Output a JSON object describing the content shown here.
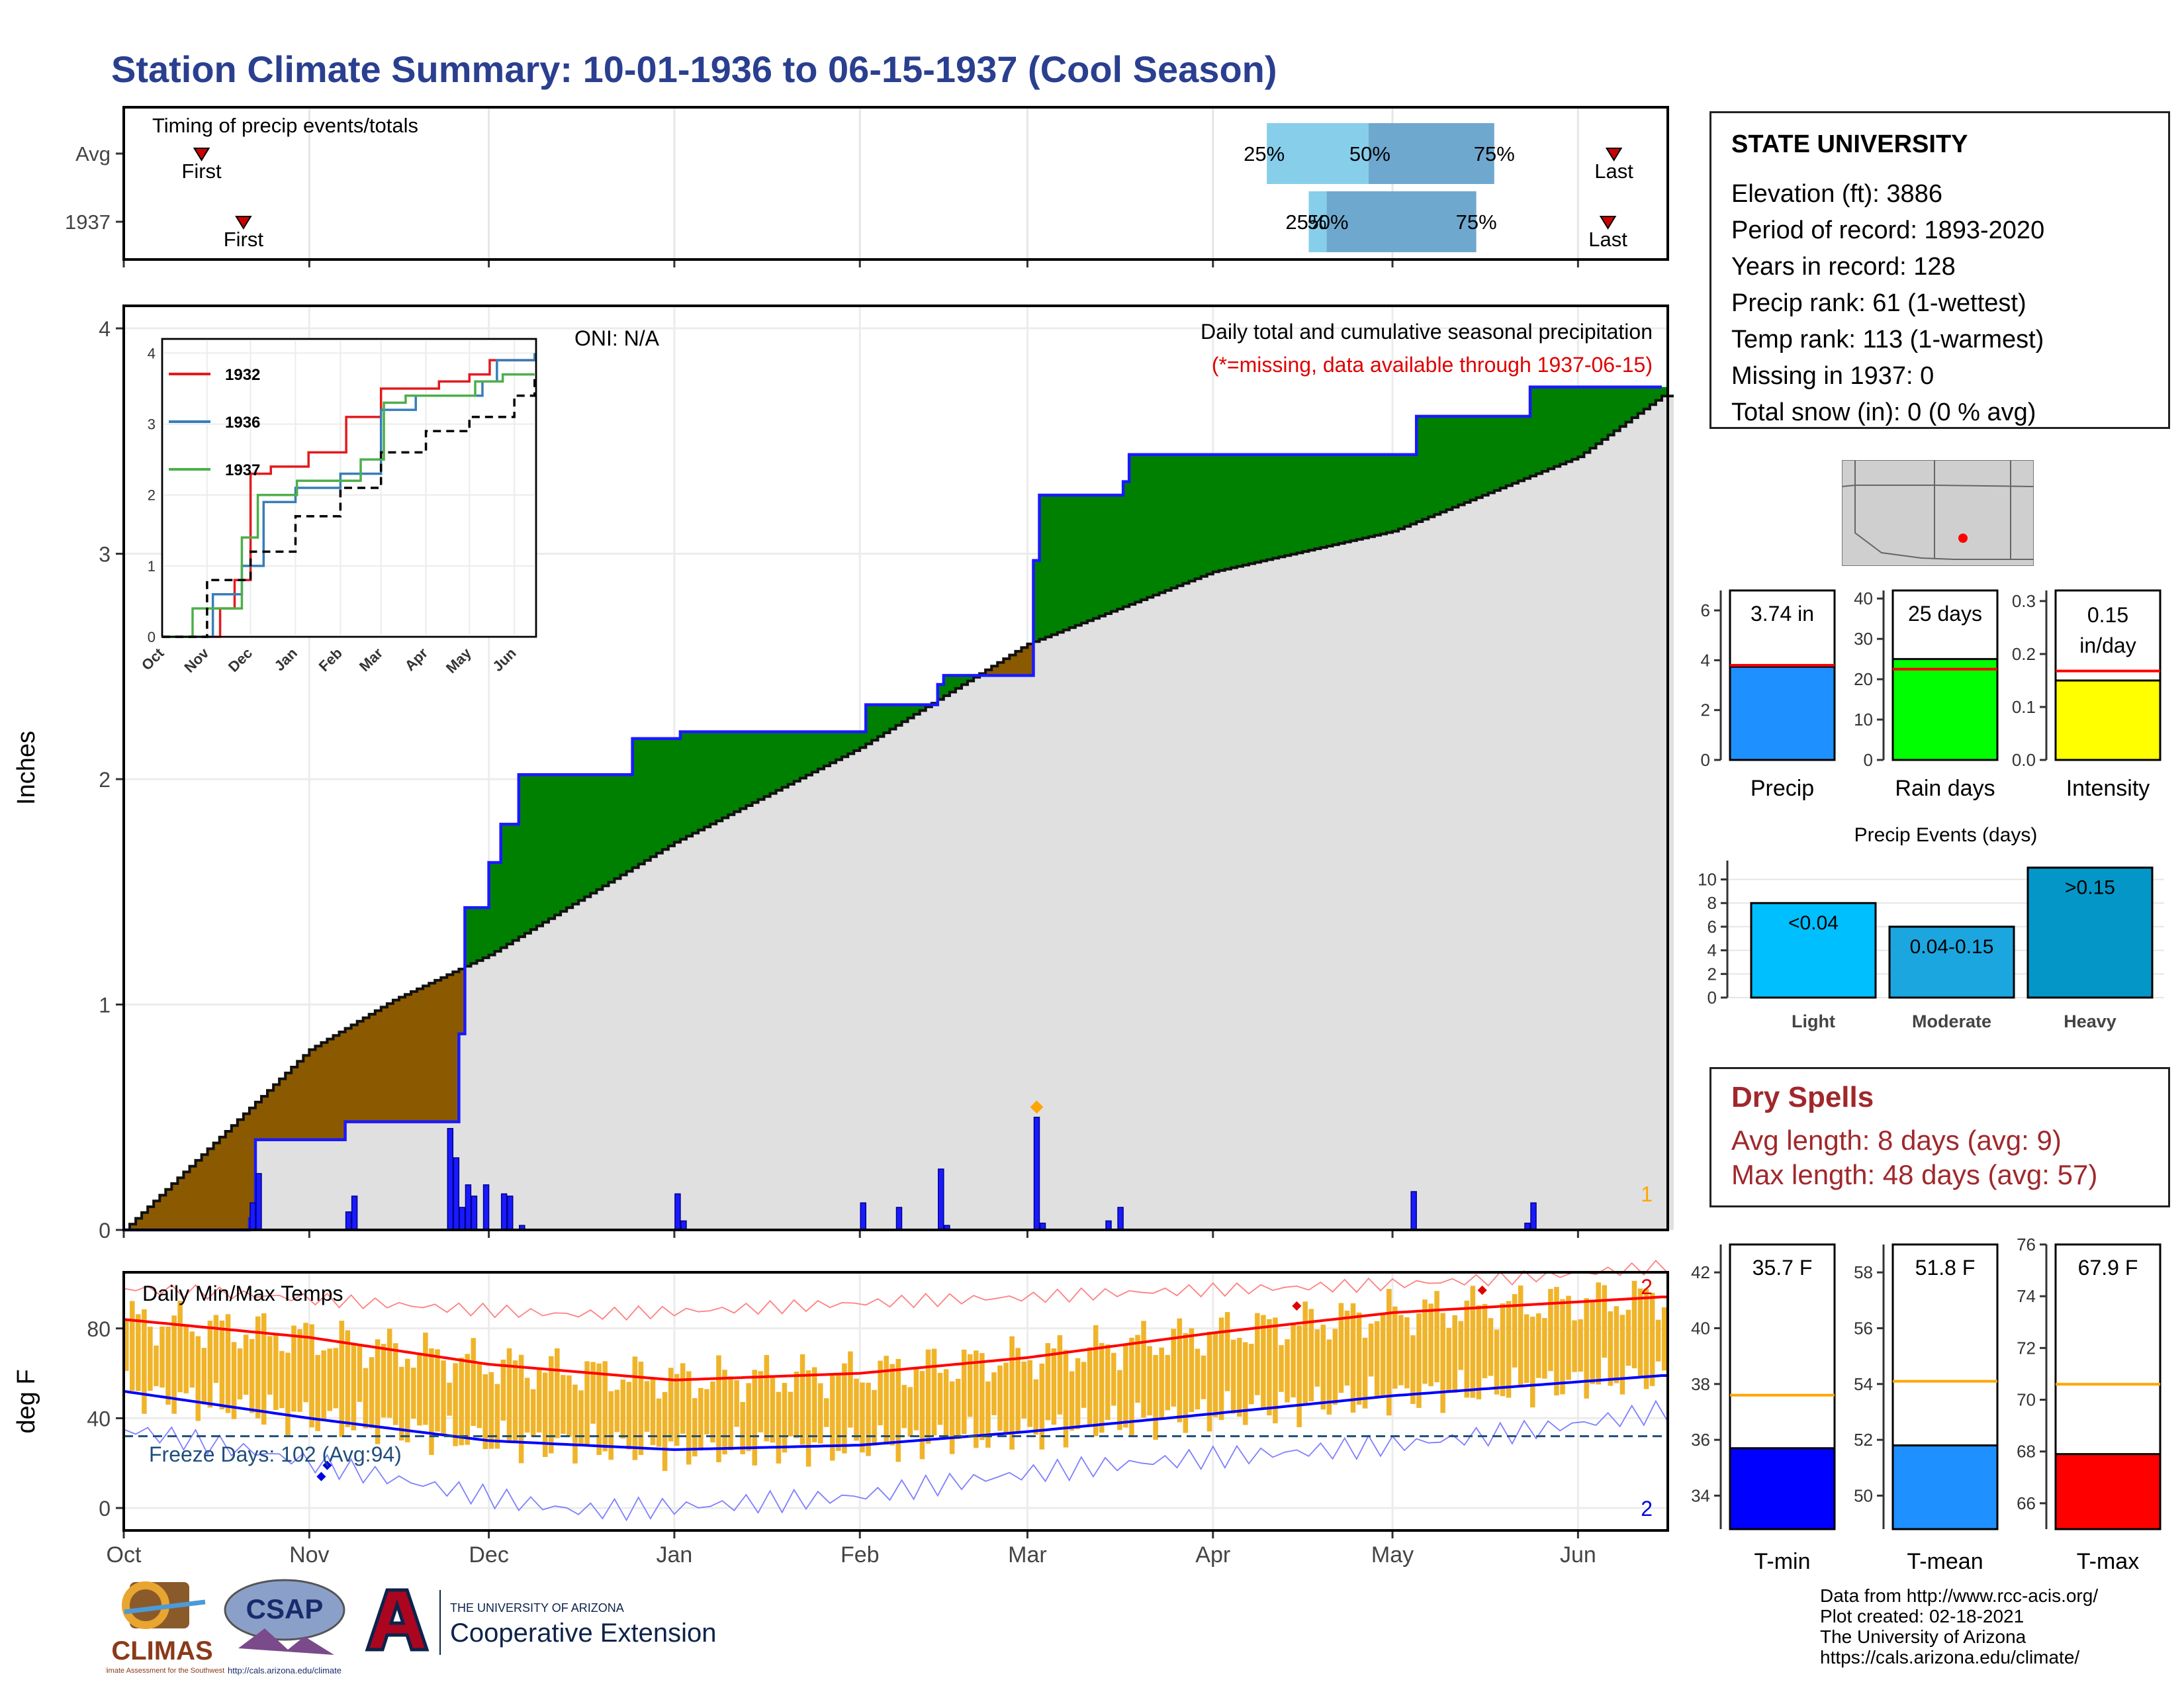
{
  "header": {
    "title": "Station Climate Summary: 10-01-1936 to 06-15-1937 (Cool Season)"
  },
  "timing": {
    "title": "Timing of precip events/totals",
    "rows": [
      {
        "label": "Avg",
        "first": "Oct 14",
        "last": "Jun 7",
        "p25": "Apr 10",
        "p50": "Apr 27",
        "p75": "May 18",
        "first_label": "First",
        "last_label": "Last",
        "p25_label": "25%",
        "p50_label": "50%",
        "p75_label": "75%"
      },
      {
        "label": "1937",
        "first": "Oct 21",
        "last": "Jun 6",
        "p25": "Apr 17",
        "p50": "Apr 20",
        "p75": "May 15",
        "first_label": "First",
        "last_label": "Last",
        "p25_label": "25%",
        "p50_label": "50%",
        "p75_label": "75%"
      }
    ],
    "colors": {
      "early": "#87ceeb",
      "late": "#6fa8cf",
      "marker": "#cc0000"
    }
  },
  "main": {
    "ylabel": "Inches",
    "oni": "ONI: N/A",
    "desc": "Daily total and cumulative seasonal precipitation",
    "missing_note": "(*=missing, data available through 1937-06-15)",
    "corner_count": "1",
    "y_ticks": [
      "0",
      "1",
      "2",
      "3",
      "4"
    ],
    "x_ticks": [
      "Oct",
      "Nov",
      "Dec",
      "Jan",
      "Feb",
      "Mar",
      "Apr",
      "May",
      "Jun"
    ]
  },
  "inset": {
    "legend": [
      "1932",
      "1936",
      "1937"
    ],
    "legend_colors": [
      "#e31a1c",
      "#377eb8",
      "#4daf4a"
    ],
    "y_ticks": [
      "0",
      "1",
      "2",
      "3",
      "4"
    ],
    "x_ticks": [
      "Oct",
      "Nov",
      "Dec",
      "Jan",
      "Feb",
      "Mar",
      "Apr",
      "May",
      "Jun"
    ]
  },
  "temps": {
    "title": "Daily Min/Max Temps",
    "ylabel": "deg F",
    "freeze": "Freeze Days: 102 (Avg:94)",
    "max_count": "2",
    "min_count": "2",
    "y_ticks": [
      "0",
      "40",
      "80"
    ],
    "x_ticks": [
      "Oct",
      "Nov",
      "Dec",
      "Jan",
      "Feb",
      "Mar",
      "Apr",
      "May",
      "Jun"
    ]
  },
  "station": {
    "name": "STATE UNIVERSITY",
    "lines": [
      "Elevation (ft): 3886",
      "Period of record: 1893-2020",
      "Years in record: 128",
      "Precip rank: 61 (1-wettest)",
      "Temp rank: 113 (1-warmest)",
      "Missing in 1937: 0",
      "Total snow (in): 0 (0 % avg)"
    ]
  },
  "summary_bars": [
    {
      "name": "Precip",
      "value_label": "3.74 in",
      "value": 3.74,
      "avg": 3.8,
      "color": "#1e90ff",
      "ticks": [
        "0",
        "2",
        "4",
        "6"
      ],
      "ymax": 6.8
    },
    {
      "name": "Rain days",
      "value_label": "25 days",
      "value": 25,
      "avg": 22.5,
      "color": "#00ff00",
      "ticks": [
        "0",
        "10",
        "20",
        "30",
        "40"
      ],
      "ymax": 42
    },
    {
      "name": "Intensity",
      "value_label": "0.15 in/day",
      "value_label_1": "0.15",
      "value_label_2": "in/day",
      "value": 0.15,
      "avg": 0.168,
      "color": "#ffff00",
      "ticks": [
        "0.0",
        "0.1",
        "0.2",
        "0.3"
      ],
      "ymax": 0.32
    }
  ],
  "precip_events": {
    "title": "Precip Events (days)",
    "ticks": [
      "0",
      "2",
      "4",
      "6",
      "8",
      "10"
    ],
    "bars": [
      {
        "name": "Light",
        "label": "<0.04",
        "value": 8,
        "color": "#00bfff"
      },
      {
        "name": "Moderate",
        "label": "0.04-0.15",
        "value": 6,
        "color": "#1ca6e0"
      },
      {
        "name": "Heavy",
        "label": ">0.15",
        "value": 11,
        "color": "#0596c8"
      }
    ]
  },
  "dry_spells": {
    "title": "Dry Spells",
    "avg_length": "Avg length: 8 days (avg: 9)",
    "max_length": "Max length: 48 days (avg: 57)"
  },
  "temp_bars": [
    {
      "name": "T-min",
      "value_label": "35.7 F",
      "value": 35.7,
      "avg": 37.6,
      "color": "#0000ff",
      "ticks": [
        "34",
        "36",
        "38",
        "40",
        "42"
      ],
      "ymin": 32.8,
      "ymax": 43
    },
    {
      "name": "T-mean",
      "value_label": "51.8 F",
      "value": 51.8,
      "avg": 54.1,
      "color": "#1e90ff",
      "ticks": [
        "50",
        "52",
        "54",
        "56",
        "58"
      ],
      "ymin": 48.8,
      "ymax": 59
    },
    {
      "name": "T-max",
      "value_label": "67.9 F",
      "value": 67.9,
      "avg": 70.6,
      "color": "#ff0000",
      "ticks": [
        "66",
        "68",
        "70",
        "72",
        "74",
        "76"
      ],
      "ymin": 65,
      "ymax": 76
    }
  ],
  "credits": [
    "Data from http://www.rcc-acis.org/",
    "Plot created: 02-18-2021",
    "The University of Arizona",
    "https://cals.arizona.edu/climate/"
  ],
  "logos": {
    "climas": "CLIMAS",
    "climas_sub": "Climate Assessment for the Southwest",
    "csap": "CSAP",
    "csap_url": "http://cals.arizona.edu/climate",
    "ua_line1": "THE UNIVERSITY OF ARIZONA",
    "ua_line2": "Cooperative Extension"
  },
  "chart_data": [
    {
      "type": "area",
      "title": "Daily total and cumulative seasonal precipitation",
      "ylabel": "Inches",
      "ylim": [
        0,
        4.1
      ],
      "x_unit": "date (1936-10-01 to 1937-06-15)",
      "series": [
        {
          "name": "1937",
          "x": [
            "1936-10-01",
            "1936-10-22",
            "1936-10-23",
            "1936-11-01",
            "1936-11-04",
            "1936-11-07",
            "1936-11-09",
            "1936-11-25",
            "1936-11-26",
            "1936-11-27",
            "1936-12-01",
            "1936-12-03",
            "1936-12-05",
            "1936-12-06",
            "1936-12-24",
            "1936-12-25",
            "1937-01-01",
            "1937-01-02",
            "1937-01-03",
            "1937-02-01",
            "1937-02-02",
            "1937-02-07",
            "1937-02-14",
            "1937-02-15",
            "1937-02-18",
            "1937-03-02",
            "1937-03-03",
            "1937-03-16",
            "1937-03-17",
            "1937-03-18",
            "1937-05-04",
            "1937-05-05",
            "1937-05-23",
            "1937-05-24",
            "1937-06-15"
          ],
          "y": [
            0,
            0.05,
            0.4,
            0.4,
            0.4,
            0.48,
            0.48,
            0.48,
            0.87,
            1.43,
            1.63,
            1.8,
            1.8,
            2.02,
            2.02,
            2.18,
            2.18,
            2.21,
            2.21,
            2.21,
            2.33,
            2.33,
            2.42,
            2.46,
            2.46,
            2.97,
            3.26,
            3.26,
            3.32,
            3.44,
            3.44,
            3.61,
            3.61,
            3.74,
            3.74
          ]
        },
        {
          "name": "Avg",
          "x": [
            "1936-10-01",
            "1936-10-15",
            "1936-11-01",
            "1936-11-15",
            "1936-12-01",
            "1937-01-01",
            "1937-02-01",
            "1937-03-01",
            "1937-04-01",
            "1937-05-01",
            "1937-06-01",
            "1937-06-15"
          ],
          "y": [
            0,
            0.36,
            0.8,
            1.02,
            1.22,
            1.72,
            2.14,
            2.6,
            2.92,
            3.1,
            3.43,
            3.7
          ]
        }
      ],
      "daily_bars": {
        "x": [
          "1936-10-22",
          "1936-10-23",
          "1936-11-07",
          "1936-11-08",
          "1936-11-24",
          "1936-11-25",
          "1936-11-26",
          "1936-11-27",
          "1936-11-28",
          "1936-11-30",
          "1936-12-03",
          "1936-12-04",
          "1936-12-06",
          "1937-01-01",
          "1937-01-02",
          "1937-02-01",
          "1937-02-07",
          "1937-02-14",
          "1937-02-15",
          "1937-03-02",
          "1937-03-03",
          "1937-03-14",
          "1937-03-16",
          "1937-05-04",
          "1937-05-23",
          "1937-05-24"
        ],
        "y": [
          0.12,
          0.25,
          0.08,
          0.15,
          0.45,
          0.32,
          0.1,
          0.2,
          0.15,
          0.2,
          0.16,
          0.15,
          0.02,
          0.16,
          0.04,
          0.12,
          0.1,
          0.27,
          0.02,
          0.5,
          0.03,
          0.04,
          0.1,
          0.17,
          0.03,
          0.12
        ]
      },
      "annotations": [
        "ONI: N/A",
        "(*=missing, data available through 1937-06-15)"
      ]
    },
    {
      "type": "line",
      "title": "inset cumulative precipitation",
      "ylim": [
        0,
        4.2
      ],
      "series": [
        {
          "name": "1932",
          "x": [
            "Oct 1",
            "Nov 10",
            "Nov 20",
            "Dec 1",
            "Dec 15",
            "Jan 10",
            "Feb 5",
            "Mar 1",
            "Mar 20",
            "Apr 10",
            "May 1",
            "May 15",
            "Jun 15"
          ],
          "y": [
            0,
            0.4,
            0.8,
            2.3,
            2.4,
            2.6,
            3.1,
            3.5,
            3.5,
            3.6,
            3.7,
            3.9,
            3.9
          ]
        },
        {
          "name": "1936",
          "x": [
            "Oct 1",
            "Nov 5",
            "Nov 25",
            "Dec 10",
            "Jan 1",
            "Feb 1",
            "Mar 1",
            "Mar 25",
            "Apr 20",
            "May 10",
            "May 20",
            "Jun 15"
          ],
          "y": [
            0,
            0.6,
            1.0,
            1.9,
            2.1,
            2.3,
            3.2,
            3.4,
            3.4,
            3.6,
            3.9,
            4.0
          ]
        },
        {
          "name": "1937",
          "x": [
            "Oct 1",
            "Oct 22",
            "Nov 25",
            "Dec 6",
            "Jan 2",
            "Feb 15",
            "Mar 3",
            "Mar 18",
            "May 5",
            "May 24",
            "Jun 15"
          ],
          "y": [
            0,
            0.4,
            1.4,
            2.0,
            2.2,
            2.5,
            3.3,
            3.4,
            3.6,
            3.7,
            3.7
          ]
        },
        {
          "name": "Avg",
          "x": [
            "Oct 1",
            "Nov 1",
            "Dec 1",
            "Jan 1",
            "Feb 1",
            "Mar 1",
            "Apr 1",
            "May 1",
            "Jun 1",
            "Jun 15"
          ],
          "y": [
            0,
            0.8,
            1.2,
            1.7,
            2.1,
            2.6,
            2.9,
            3.1,
            3.4,
            3.7
          ]
        }
      ]
    },
    {
      "type": "bar",
      "title": "Daily Min/Max Temps",
      "ylabel": "deg F",
      "ylim": [
        -10,
        105
      ],
      "series": [
        {
          "name": "avg max",
          "x": [
            "1936-10-01",
            "1936-11-01",
            "1936-12-01",
            "1937-01-01",
            "1937-02-01",
            "1937-03-01",
            "1937-04-01",
            "1937-05-01",
            "1937-06-15"
          ],
          "y": [
            84,
            76,
            64,
            57,
            60,
            67,
            78,
            87,
            94
          ]
        },
        {
          "name": "avg min",
          "x": [
            "1936-10-01",
            "1936-11-01",
            "1936-12-01",
            "1937-01-01",
            "1937-02-01",
            "1937-03-01",
            "1937-04-01",
            "1937-05-01",
            "1937-06-15"
          ],
          "y": [
            52,
            40,
            30,
            26,
            28,
            34,
            42,
            50,
            59
          ]
        },
        {
          "name": "record max",
          "x": [
            "1936-10-01",
            "1936-12-15",
            "1937-03-01",
            "1937-06-15"
          ],
          "y": [
            96,
            88,
            92,
            108
          ]
        },
        {
          "name": "record min",
          "x": [
            "1936-10-01",
            "1936-12-15",
            "1937-02-01",
            "1937-06-15"
          ],
          "y": [
            32,
            2,
            4,
            44
          ]
        }
      ],
      "freeze_line": 32,
      "annotations": [
        "Freeze Days: 102 (Avg:94)"
      ]
    },
    {
      "type": "bar",
      "categories": [
        "Precip",
        "Rain days",
        "Intensity"
      ],
      "values": [
        3.74,
        25,
        0.15
      ]
    },
    {
      "type": "bar",
      "title": "Precip Events (days)",
      "categories": [
        "Light",
        "Moderate",
        "Heavy"
      ],
      "values": [
        8,
        6,
        11
      ]
    },
    {
      "type": "bar",
      "categories": [
        "T-min",
        "T-mean",
        "T-max"
      ],
      "values": [
        35.7,
        51.8,
        67.9
      ]
    }
  ]
}
